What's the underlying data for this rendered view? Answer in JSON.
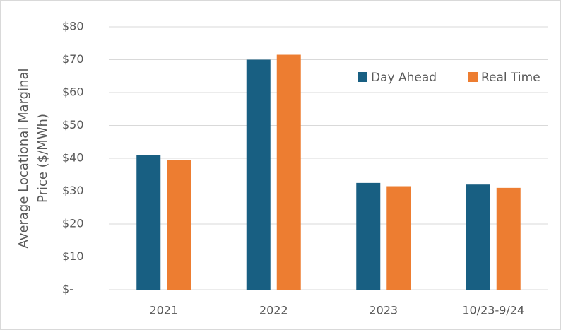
{
  "chart_data": {
    "type": "bar",
    "ylabel": [
      "Average Locational Marginal",
      "Price  ($/MWh)"
    ],
    "categories": [
      "2021",
      "2022",
      "2023",
      "10/23-9/24"
    ],
    "series": [
      {
        "name": "Day Ahead",
        "color": "#185f82",
        "values": [
          41,
          70,
          32.5,
          32
        ]
      },
      {
        "name": "Real Time",
        "color": "#ed7d31",
        "values": [
          39.5,
          71.5,
          31.5,
          31
        ]
      }
    ],
    "ylim": [
      0,
      80
    ],
    "yticks": [
      {
        "value": 0,
        "label": "$-"
      },
      {
        "value": 10,
        "label": "$10"
      },
      {
        "value": 20,
        "label": "$20"
      },
      {
        "value": 30,
        "label": "$30"
      },
      {
        "value": 40,
        "label": "$40"
      },
      {
        "value": 50,
        "label": "$50"
      },
      {
        "value": 60,
        "label": "$60"
      },
      {
        "value": 70,
        "label": "$70"
      },
      {
        "value": 80,
        "label": "$80"
      }
    ],
    "grid": true,
    "legend": "top-right"
  }
}
